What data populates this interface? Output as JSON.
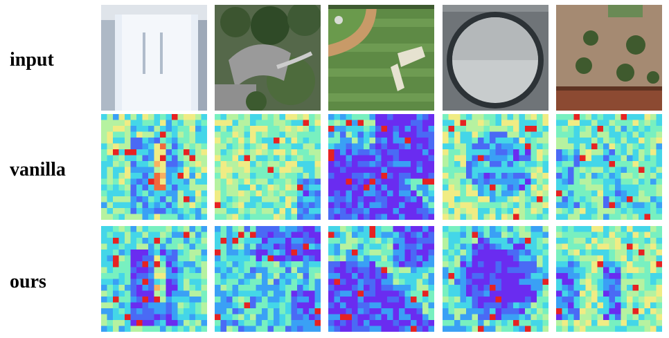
{
  "rows": [
    {
      "label": "input",
      "kind": "photo"
    },
    {
      "label": "vanilla",
      "kind": "heatmap-vanilla"
    },
    {
      "label": "ours",
      "kind": "heatmap-ours"
    }
  ],
  "columns": [
    {
      "scene": "white-roof-building",
      "description_icon": "building-icon"
    },
    {
      "scene": "urban-trees",
      "description_icon": "trees-icon"
    },
    {
      "scene": "baseball-field",
      "description_icon": "field-icon"
    },
    {
      "scene": "stadium-dome",
      "description_icon": "dome-icon"
    },
    {
      "scene": "plaza-with-trees",
      "description_icon": "plaza-icon"
    }
  ],
  "colormap": [
    "#6a2cf0",
    "#4a6af5",
    "#3aa0f5",
    "#44d6e8",
    "#78f0c0",
    "#b6f2a0",
    "#f0ec84",
    "#f8b060",
    "#f06a3c",
    "#e62222"
  ]
}
